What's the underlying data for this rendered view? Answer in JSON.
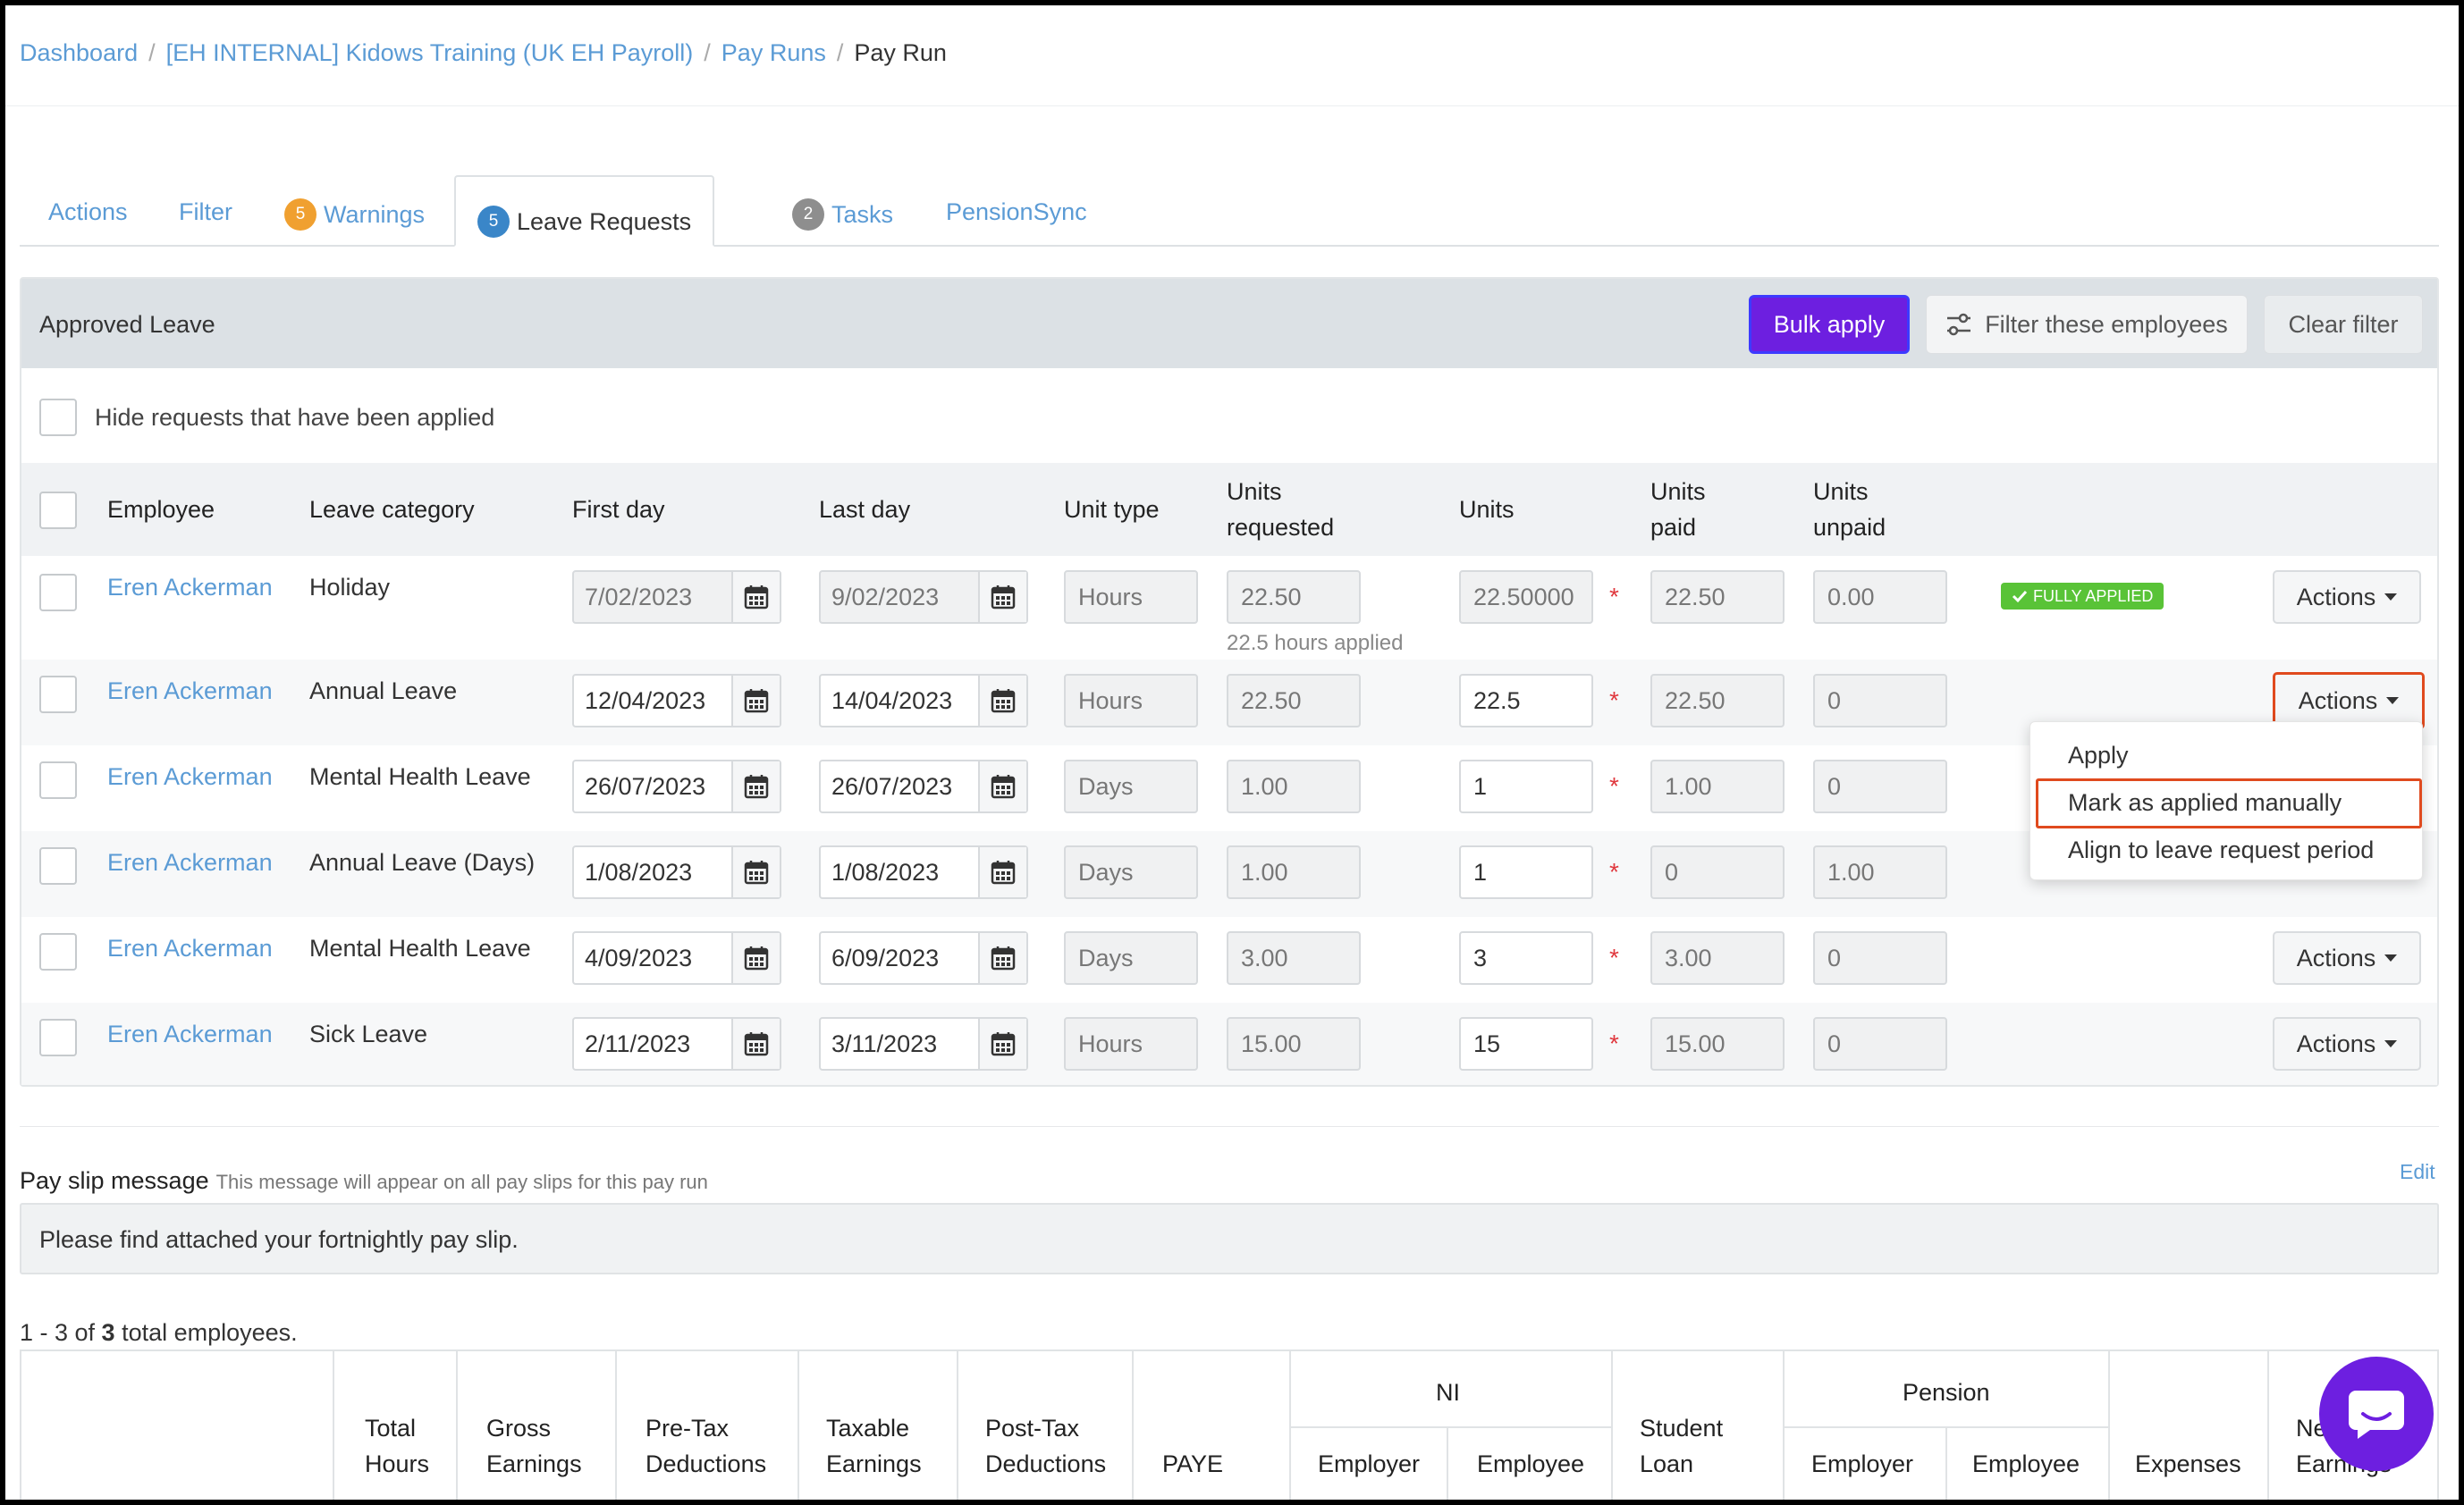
{
  "breadcrumb": {
    "items": [
      "Dashboard",
      "[EH INTERNAL] Kidows Training (UK EH Payroll)",
      "Pay Runs"
    ],
    "current": "Pay Run"
  },
  "tabs": [
    {
      "label": "Actions"
    },
    {
      "label": "Filter"
    },
    {
      "label": "Warnings",
      "badge": "5",
      "badge_color": "#f0a030"
    },
    {
      "label": "Leave Requests",
      "badge": "5",
      "badge_color": "#3a86c8",
      "active": true
    },
    {
      "label": "Tasks",
      "badge": "2",
      "badge_color": "#8e8e8e"
    },
    {
      "label": "PensionSync"
    }
  ],
  "approved_leave": {
    "title": "Approved Leave",
    "bulk_apply": "Bulk apply",
    "filter_employees": "Filter these employees",
    "clear_filter": "Clear filter",
    "hide_applied_label": "Hide requests that have been applied",
    "columns": {
      "employee": "Employee",
      "leave_category": "Leave category",
      "first_day": "First day",
      "last_day": "Last day",
      "unit_type": "Unit type",
      "units_requested_1": "Units",
      "units_requested_2": "requested",
      "units": "Units",
      "units_paid_1": "Units",
      "units_paid_2": "paid",
      "units_unpaid_1": "Units",
      "units_unpaid_2": "unpaid"
    },
    "rows": [
      {
        "employee": "Eren Ackerman",
        "category": "Holiday",
        "first_day": "7/02/2023",
        "last_day": "9/02/2023",
        "unit_type": "Hours",
        "units_requested": "22.50",
        "units": "22.50000",
        "units_paid": "22.50",
        "units_unpaid": "0.00",
        "status": "FULLY APPLIED",
        "note": "22.5 hours applied",
        "actions": "Actions"
      },
      {
        "employee": "Eren Ackerman",
        "category": "Annual Leave",
        "first_day": "12/04/2023",
        "last_day": "14/04/2023",
        "unit_type": "Hours",
        "units_requested": "22.50",
        "units": "22.5",
        "units_paid": "22.50",
        "units_unpaid": "0",
        "actions": "Actions"
      },
      {
        "employee": "Eren Ackerman",
        "category": "Mental Health Leave",
        "first_day": "26/07/2023",
        "last_day": "26/07/2023",
        "unit_type": "Days",
        "units_requested": "1.00",
        "units": "1",
        "units_paid": "1.00",
        "units_unpaid": "0"
      },
      {
        "employee": "Eren Ackerman",
        "category": "Annual Leave (Days)",
        "first_day": "1/08/2023",
        "last_day": "1/08/2023",
        "unit_type": "Days",
        "units_requested": "1.00",
        "units": "1",
        "units_paid": "0",
        "units_unpaid": "1.00"
      },
      {
        "employee": "Eren Ackerman",
        "category": "Mental Health Leave",
        "first_day": "4/09/2023",
        "last_day": "6/09/2023",
        "unit_type": "Days",
        "units_requested": "3.00",
        "units": "3",
        "units_paid": "3.00",
        "units_unpaid": "0",
        "actions": "Actions"
      },
      {
        "employee": "Eren Ackerman",
        "category": "Sick Leave",
        "first_day": "2/11/2023",
        "last_day": "3/11/2023",
        "unit_type": "Hours",
        "units_requested": "15.00",
        "units": "15",
        "units_paid": "15.00",
        "units_unpaid": "0",
        "actions": "Actions"
      }
    ],
    "required_mark": "*"
  },
  "actions_menu": {
    "items": [
      "Apply",
      "Mark as applied manually",
      "Align to leave request period"
    ]
  },
  "payslip": {
    "label": "Pay slip message",
    "note": "This message will appear on all pay slips for this pay run",
    "edit": "Edit",
    "message": "Please find attached your fortnightly pay slip."
  },
  "employee_count": {
    "prefix": "1 - 3 of ",
    "total": "3",
    "suffix": " total employees."
  },
  "summary_table": {
    "headers": {
      "total_hours_1": "Total",
      "total_hours_2": "Hours",
      "gross_1": "Gross",
      "gross_2": "Earnings",
      "pretax_1": "Pre-Tax",
      "pretax_2": "Deductions",
      "taxable_1": "Taxable",
      "taxable_2": "Earnings",
      "posttax_1": "Post-Tax",
      "posttax_2": "Deductions",
      "paye": "PAYE",
      "ni": "NI",
      "ni_employer": "Employer",
      "ni_employee": "Employee",
      "student_1": "Student",
      "student_2": "Loan",
      "pension": "Pension",
      "pension_employer": "Employer",
      "pension_employee": "Employee",
      "expenses": "Expenses",
      "net_1": "Net",
      "net_2": "Earnings"
    }
  },
  "colors": {
    "link": "#5b9bd5",
    "primary": "#6d1fe0",
    "highlight": "#e04a1e",
    "success": "#59c337",
    "required": "#e0383e"
  },
  "icons": [
    "calendar-icon",
    "filter-sliders-icon",
    "check-icon",
    "chevron-down-icon",
    "chat-icon"
  ]
}
